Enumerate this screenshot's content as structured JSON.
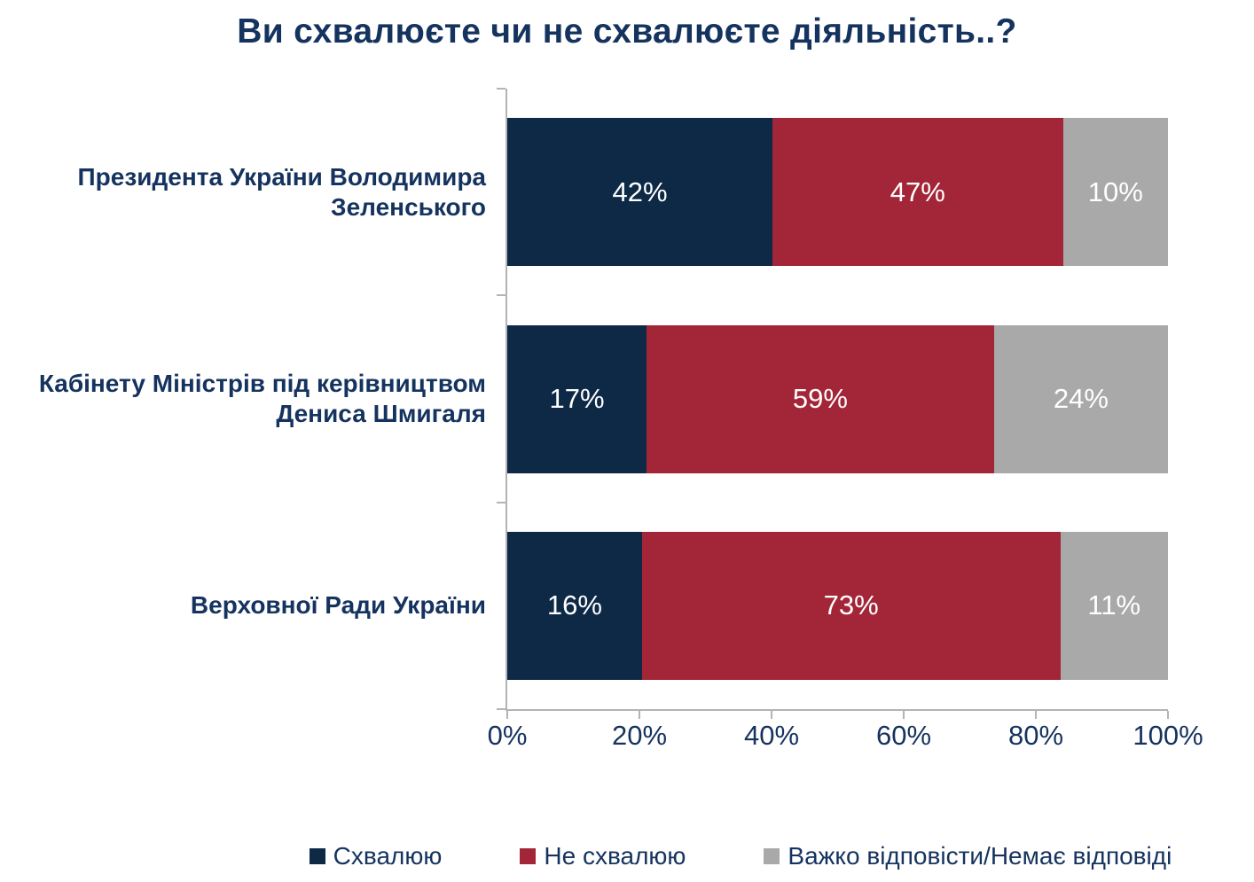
{
  "title": "Ви схвалюєте чи не схвалюєте діяльність..?",
  "colors": {
    "approve": "#0D2946",
    "disapprove": "#A32638",
    "no_answer": "#A9A9A9",
    "text": "#15335F",
    "axis": "#B3B3B8",
    "bar_label": "#FFFFFF",
    "background": "#FFFFFF"
  },
  "chart_data": {
    "type": "bar",
    "orientation": "horizontal",
    "stacked": true,
    "title": "Ви схвалюєте чи не схвалюєте діяльність..?",
    "categories": [
      "Президента України Володимира Зеленського",
      "Кабінету Міністрів під керівництвом Дениса Шмигаля",
      "Верховної Ради України"
    ],
    "series": [
      {
        "name": "Схвалюю",
        "color": "#0D2946",
        "values": [
          42,
          17,
          16
        ],
        "labels": [
          "42%",
          "17%",
          "16%"
        ]
      },
      {
        "name": "Не схвалюю",
        "color": "#A32638",
        "values": [
          47,
          59,
          73
        ],
        "labels": [
          "47%",
          "59%",
          "73%"
        ]
      },
      {
        "name": "Важко відповісти/Немає відповіді",
        "color": "#A9A9A9",
        "values": [
          10,
          24,
          11
        ],
        "labels": [
          "10%",
          "24%",
          "11%"
        ]
      }
    ],
    "x_axis": {
      "min": 0,
      "max": 100,
      "tick_labels": [
        "0%",
        "20%",
        "40%",
        "60%",
        "80%",
        "100%"
      ],
      "tick_step": 20
    },
    "grid": false,
    "legend_position": "bottom"
  }
}
